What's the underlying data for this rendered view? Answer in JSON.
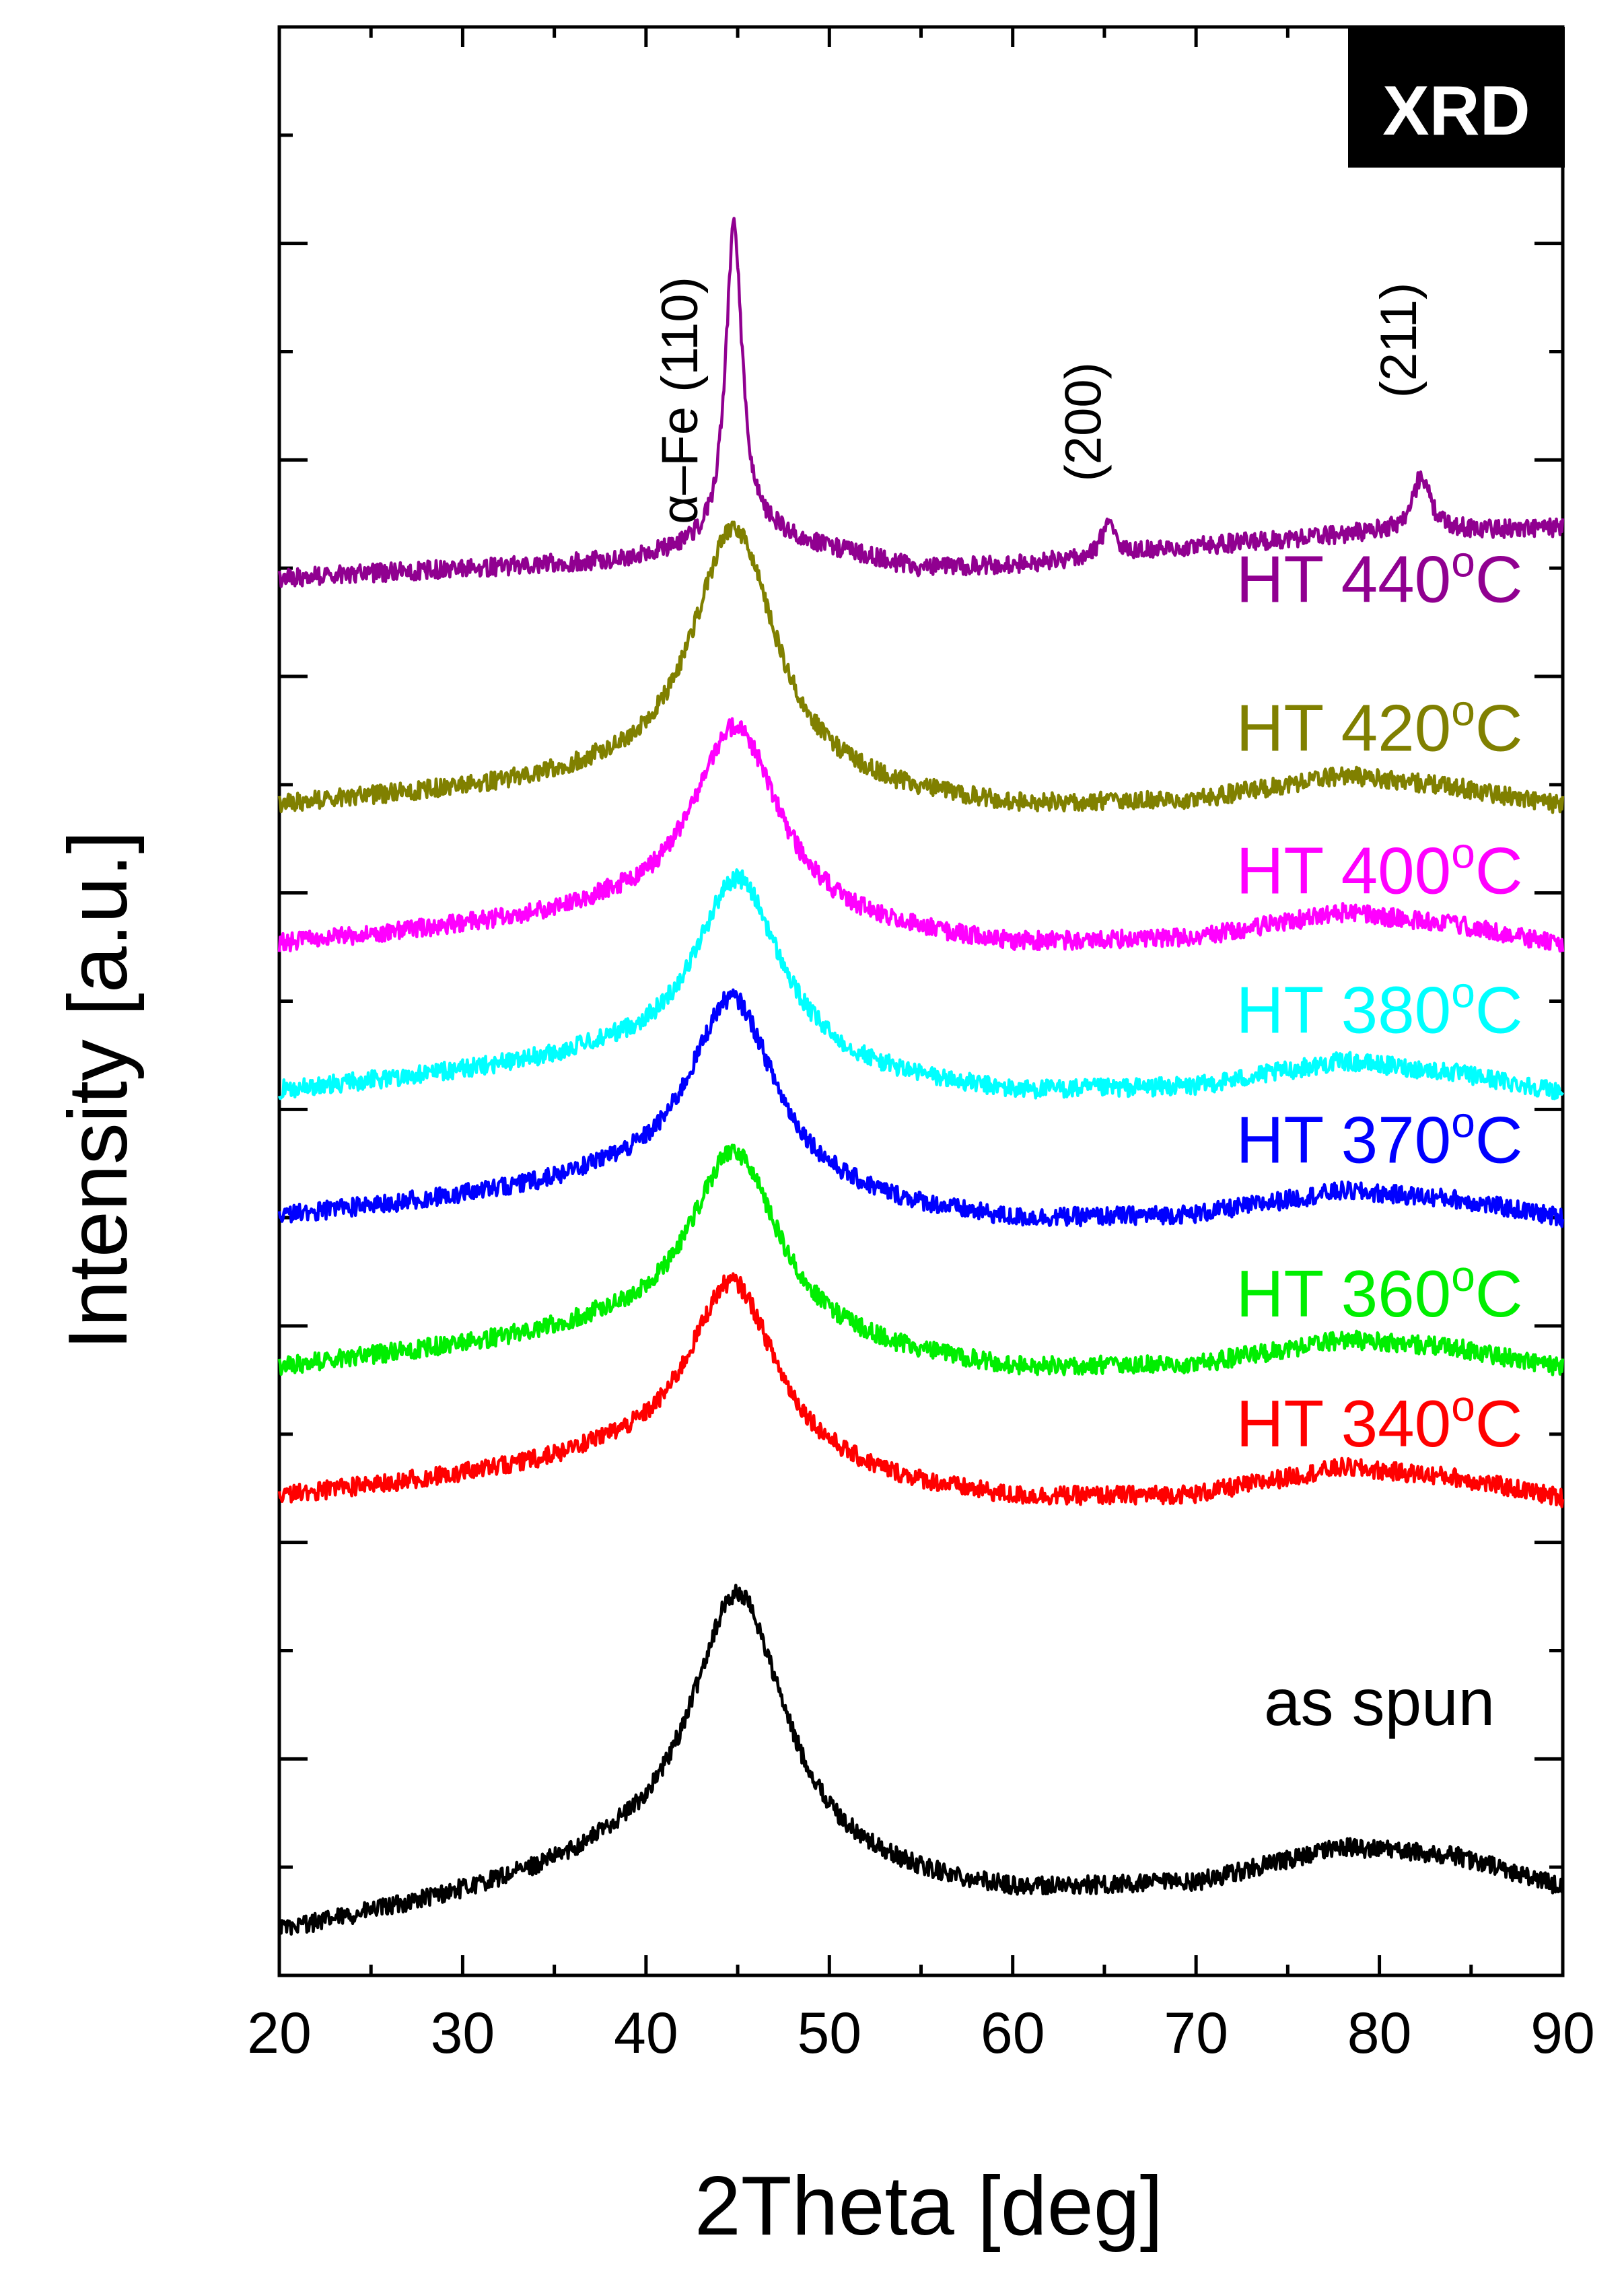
{
  "chart_data": {
    "type": "line",
    "title": "",
    "badge": "XRD",
    "xlabel": "2Theta [deg]",
    "ylabel": "Intensity [a.u.]",
    "xlim": [
      20,
      90
    ],
    "ylim": [
      0,
      10.5
    ],
    "x_ticks": [
      20,
      30,
      40,
      50,
      60,
      70,
      80,
      90
    ],
    "y_major_tick_count": 8,
    "grid": false,
    "series": [
      {
        "name": "as spun",
        "color": "#000000",
        "peak_x": 45.0,
        "peak_height": 1.55,
        "peak_width": 3.2,
        "baseline": [
          [
            20,
            0.22
          ],
          [
            38,
            0.55
          ],
          [
            60,
            0.42
          ],
          [
            70,
            0.48
          ],
          [
            78,
            0.68
          ],
          [
            84,
            0.64
          ],
          [
            90,
            0.47
          ]
        ],
        "noise": 0.05,
        "label_x": 80,
        "label_y": 1.35
      },
      {
        "name": "HT 340oC",
        "color": "#ff0000",
        "peak_x": 44.7,
        "peak_height": 1.05,
        "peak_width": 3.0,
        "baseline": [
          [
            20,
            2.57
          ],
          [
            38,
            2.75
          ],
          [
            60,
            2.55
          ],
          [
            70,
            2.58
          ],
          [
            78,
            2.73
          ],
          [
            84,
            2.68
          ],
          [
            90,
            2.57
          ]
        ],
        "noise": 0.05,
        "label_x": 80,
        "label_y": 2.85
      },
      {
        "name": "HT 360oC",
        "color": "#00ee00",
        "peak_x": 44.8,
        "peak_height": 1.05,
        "peak_width": 3.0,
        "baseline": [
          [
            20,
            3.27
          ],
          [
            38,
            3.45
          ],
          [
            60,
            3.25
          ],
          [
            70,
            3.28
          ],
          [
            78,
            3.42
          ],
          [
            84,
            3.38
          ],
          [
            90,
            3.27
          ]
        ],
        "noise": 0.05,
        "label_x": 80,
        "label_y": 3.55
      },
      {
        "name": "HT 370oC",
        "color": "#0000ff",
        "peak_x": 44.7,
        "peak_height": 1.08,
        "peak_width": 2.9,
        "baseline": [
          [
            20,
            4.08
          ],
          [
            38,
            4.25
          ],
          [
            60,
            4.05
          ],
          [
            70,
            4.09
          ],
          [
            78,
            4.22
          ],
          [
            84,
            4.18
          ],
          [
            90,
            4.08
          ]
        ],
        "noise": 0.05,
        "label_x": 80,
        "label_y": 4.38
      },
      {
        "name": "HT 380oC",
        "color": "#00ffff",
        "peak_x": 45.0,
        "peak_height": 1.05,
        "peak_width": 2.9,
        "baseline": [
          [
            20,
            4.76
          ],
          [
            38,
            4.92
          ],
          [
            60,
            4.74
          ],
          [
            70,
            4.78
          ],
          [
            78,
            4.92
          ],
          [
            84,
            4.86
          ],
          [
            90,
            4.76
          ]
        ],
        "noise": 0.05,
        "label_x": 80,
        "label_y": 5.08
      },
      {
        "name": "HT 400oC",
        "color": "#ff00ff",
        "peak_x": 44.9,
        "peak_height": 1.08,
        "peak_width": 2.9,
        "baseline": [
          [
            20,
            5.55
          ],
          [
            38,
            5.7
          ],
          [
            60,
            5.54
          ],
          [
            70,
            5.58
          ],
          [
            78,
            5.72
          ],
          [
            84,
            5.66
          ],
          [
            90,
            5.55
          ]
        ],
        "noise": 0.05,
        "label_x": 80,
        "label_y": 5.83
      },
      {
        "name": "HT 420oC",
        "color": "#808000",
        "peak_x": 44.8,
        "peak_height": 1.42,
        "peak_width": 2.8,
        "baseline": [
          [
            20,
            6.3
          ],
          [
            38,
            6.42
          ],
          [
            60,
            6.28
          ],
          [
            70,
            6.32
          ],
          [
            78,
            6.46
          ],
          [
            84,
            6.4
          ],
          [
            90,
            6.3
          ]
        ],
        "noise": 0.05,
        "label_x": 80,
        "label_y": 6.6
      },
      {
        "name": "HT 440oC",
        "color": "#900090",
        "peak_x": 44.8,
        "peak_height": 1.72,
        "peak_width": 0.55,
        "baseline": [
          [
            20,
            7.53
          ],
          [
            38,
            7.62
          ],
          [
            44,
            7.7
          ],
          [
            47,
            7.75
          ],
          [
            55,
            7.58
          ],
          [
            60,
            7.6
          ],
          [
            70,
            7.7
          ],
          [
            80,
            7.78
          ],
          [
            90,
            7.8
          ]
        ],
        "noise": 0.05,
        "extra_peaks": [
          [
            65.2,
            0.16,
            0.45
          ],
          [
            82.3,
            0.3,
            0.55
          ]
        ],
        "label_x": 80,
        "label_y": 7.4
      }
    ],
    "annotations": [
      {
        "text": "α–Fe (110)",
        "x": 42.8,
        "y": 7.82
      },
      {
        "text": "(200)",
        "x": 64.8,
        "y": 8.05
      },
      {
        "text": "(211)",
        "x": 82.0,
        "y": 8.5
      }
    ]
  }
}
